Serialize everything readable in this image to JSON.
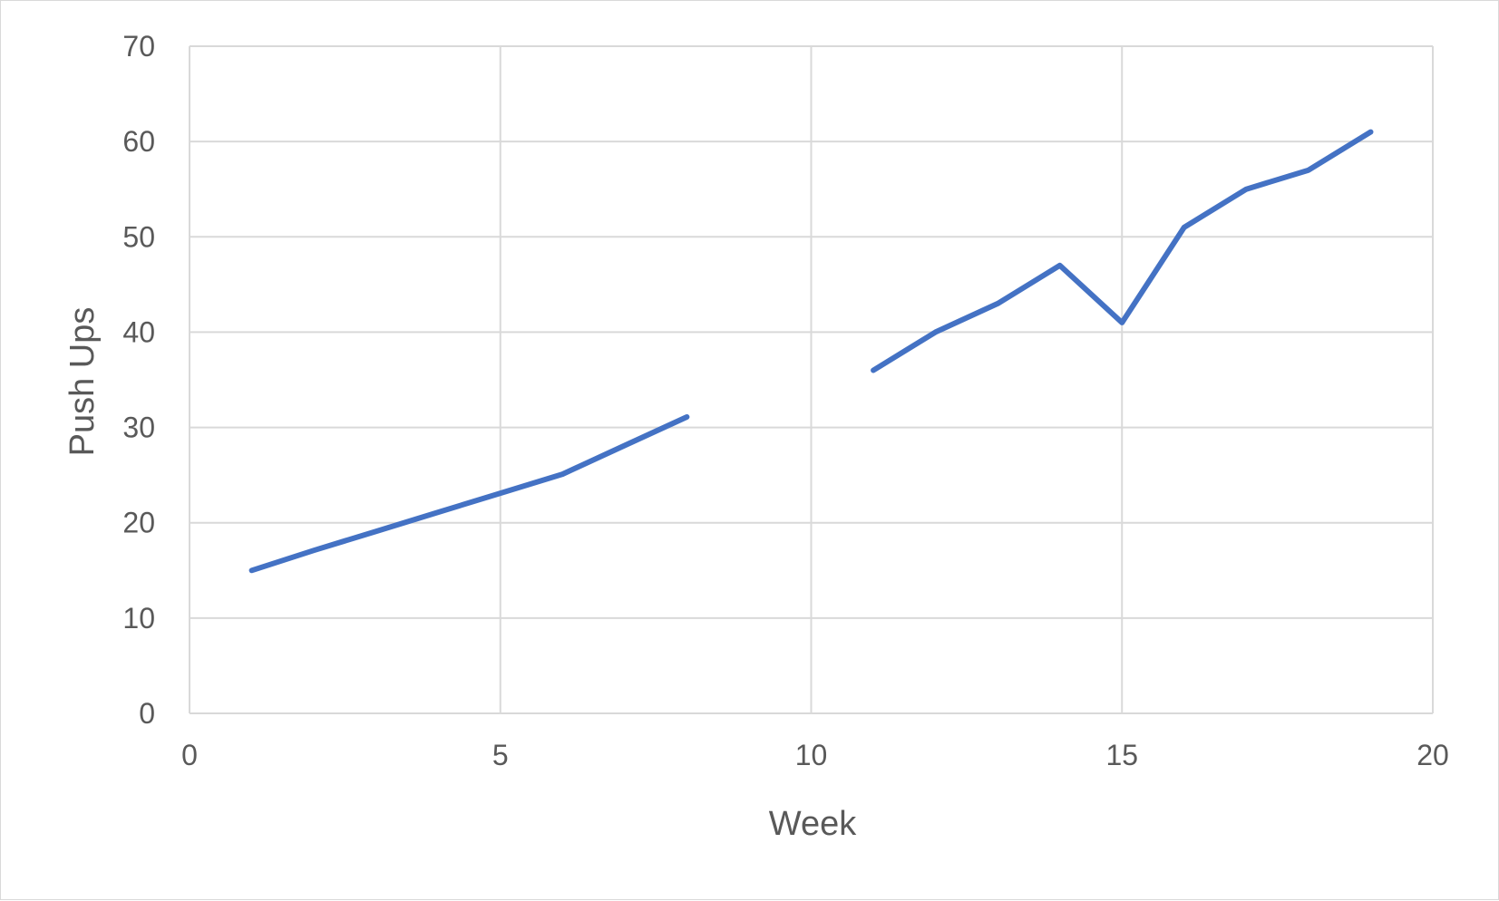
{
  "chart_data": {
    "type": "line",
    "title": "",
    "xlabel": "Week",
    "ylabel": "Push Ups",
    "xlim": [
      0,
      20
    ],
    "ylim": [
      0,
      70
    ],
    "x_ticks": [
      "0",
      "5",
      "10",
      "15",
      "20"
    ],
    "y_ticks": [
      "0",
      "10",
      "20",
      "30",
      "40",
      "50",
      "60",
      "70"
    ],
    "grid": true,
    "legend": "none",
    "colors": {
      "line": "#4472c4",
      "grid": "#d9d9d9",
      "text": "#595959"
    },
    "series": [
      {
        "segments": [
          [
            [
              1,
              15
            ],
            [
              2,
              17.1
            ],
            [
              3,
              19.1
            ],
            [
              4,
              21.1
            ],
            [
              5,
              23.1
            ],
            [
              6,
              25.1
            ],
            [
              7,
              28.1
            ],
            [
              8,
              31.1
            ]
          ],
          [
            [
              11,
              36
            ],
            [
              12,
              40
            ],
            [
              13,
              43
            ],
            [
              14,
              47
            ],
            [
              15,
              41
            ],
            [
              16,
              51
            ],
            [
              17,
              55
            ],
            [
              18,
              57
            ],
            [
              19,
              61
            ]
          ]
        ]
      }
    ]
  }
}
